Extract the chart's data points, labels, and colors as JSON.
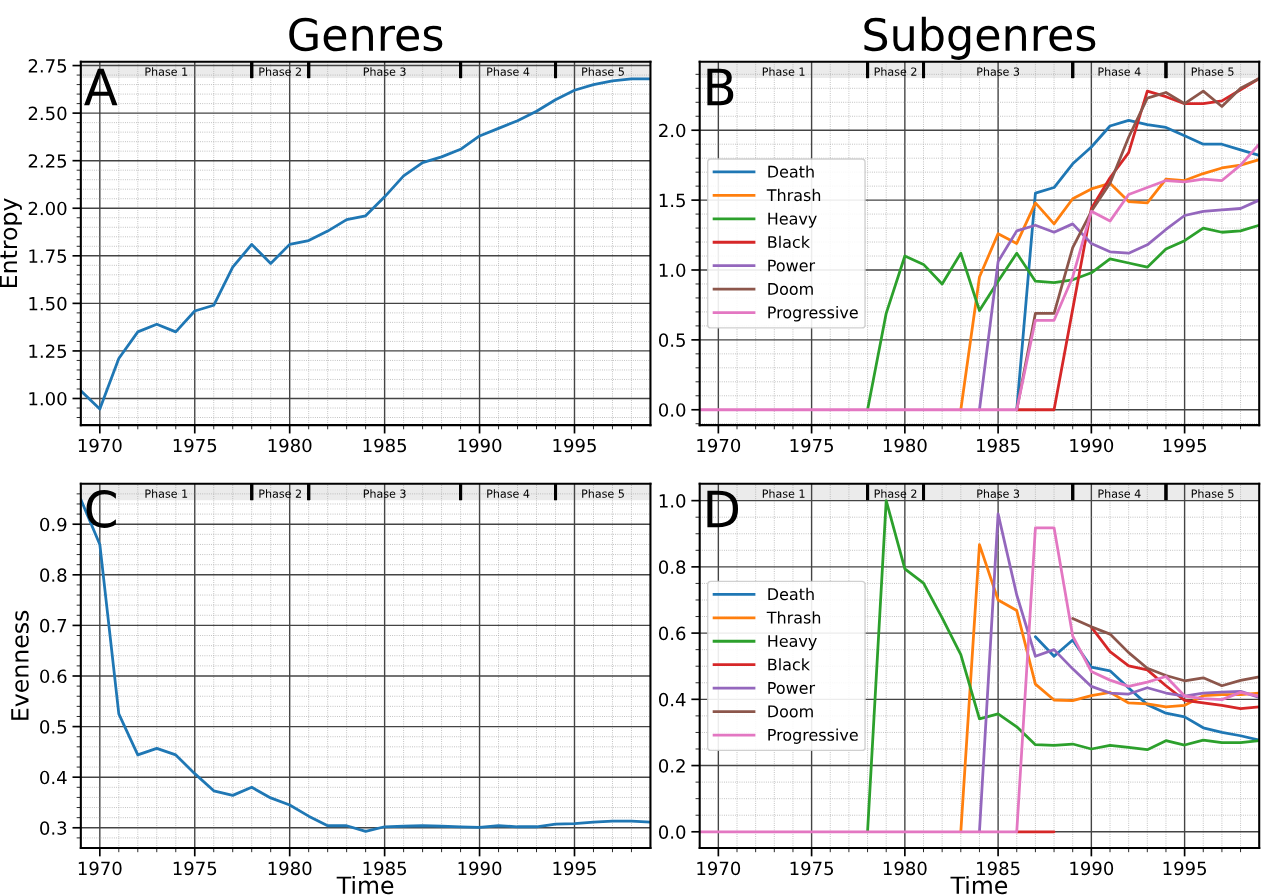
{
  "chart_data": [
    {
      "type": "line",
      "title": "Genres",
      "ylabel": "Entropy",
      "annotations": [
        "A"
      ],
      "x": [
        1969,
        1970,
        1971,
        1972,
        1973,
        1974,
        1975,
        1976,
        1977,
        1978,
        1979,
        1980,
        1981,
        1982,
        1983,
        1984,
        1985,
        1986,
        1987,
        1988,
        1989,
        1990,
        1991,
        1992,
        1993,
        1994,
        1995,
        1996,
        1997,
        1998,
        1999
      ],
      "series": [
        {
          "color": "#1f77b4",
          "values": [
            1.04,
            0.945,
            1.21,
            1.35,
            1.39,
            1.35,
            1.46,
            1.49,
            1.69,
            1.81,
            1.71,
            1.81,
            1.83,
            1.88,
            1.94,
            1.96,
            2.06,
            2.17,
            2.24,
            2.27,
            2.31,
            2.38,
            2.42,
            2.46,
            2.51,
            2.57,
            2.62,
            2.65,
            2.67,
            2.68,
            2.68
          ]
        }
      ],
      "xlim": [
        1969,
        1999
      ],
      "xticks": [
        1970,
        1975,
        1980,
        1985,
        1990,
        1995,
        {
          "value": 1971,
          "label": null
        },
        {
          "value": 1972,
          "label": null
        },
        {
          "value": 1973,
          "label": null
        },
        {
          "value": 1974,
          "label": null
        },
        {
          "value": 1976,
          "label": null
        },
        {
          "value": 1977,
          "label": null
        },
        {
          "value": 1978,
          "label": null
        },
        {
          "value": 1979,
          "label": null
        },
        {
          "value": 1981,
          "label": null
        },
        {
          "value": 1982,
          "label": null
        },
        {
          "value": 1983,
          "label": null
        },
        {
          "value": 1984,
          "label": null
        },
        {
          "value": 1986,
          "label": null
        },
        {
          "value": 1987,
          "label": null
        },
        {
          "value": 1988,
          "label": null
        },
        {
          "value": 1989,
          "label": null
        },
        {
          "value": 1991,
          "label": null
        },
        {
          "value": 1992,
          "label": null
        },
        {
          "value": 1993,
          "label": null
        },
        {
          "value": 1994,
          "label": null
        },
        {
          "value": 1996,
          "label": null
        },
        {
          "value": 1997,
          "label": null
        },
        {
          "value": 1998,
          "label": null
        }
      ],
      "ylim": [
        0.86,
        2.77
      ],
      "yticks": [
        {
          "value": 1.0,
          "label": "1.00"
        },
        {
          "value": 1.25,
          "label": "1.25"
        },
        {
          "value": 1.5,
          "label": "1.50"
        },
        {
          "value": 1.75,
          "label": "1.75"
        },
        {
          "value": 2.0,
          "label": "2.00"
        },
        {
          "value": 2.25,
          "label": "2.25"
        },
        {
          "value": 2.5,
          "label": "2.50"
        },
        {
          "value": 2.75,
          "label": "2.75"
        },
        {
          "value": 0.9,
          "label": null
        },
        {
          "value": 0.95,
          "label": null
        },
        {
          "value": 1.05,
          "label": null
        },
        {
          "value": 1.1,
          "label": null
        },
        {
          "value": 1.15,
          "label": null
        },
        {
          "value": 1.2,
          "label": null
        },
        {
          "value": 1.3,
          "label": null
        },
        {
          "value": 1.35,
          "label": null
        },
        {
          "value": 1.4,
          "label": null
        },
        {
          "value": 1.45,
          "label": null
        },
        {
          "value": 1.55,
          "label": null
        },
        {
          "value": 1.6,
          "label": null
        },
        {
          "value": 1.65,
          "label": null
        },
        {
          "value": 1.7,
          "label": null
        },
        {
          "value": 1.8,
          "label": null
        },
        {
          "value": 1.85,
          "label": null
        },
        {
          "value": 1.9,
          "label": null
        },
        {
          "value": 1.95,
          "label": null
        },
        {
          "value": 2.05,
          "label": null
        },
        {
          "value": 2.1,
          "label": null
        },
        {
          "value": 2.15,
          "label": null
        },
        {
          "value": 2.2,
          "label": null
        },
        {
          "value": 2.3,
          "label": null
        },
        {
          "value": 2.35,
          "label": null
        },
        {
          "value": 2.4,
          "label": null
        },
        {
          "value": 2.45,
          "label": null
        },
        {
          "value": 2.55,
          "label": null
        },
        {
          "value": 2.6,
          "label": null
        },
        {
          "value": 2.65,
          "label": null
        },
        {
          "value": 2.7,
          "label": null
        }
      ],
      "bands": [
        {
          "axis": "x",
          "from": 1969,
          "to": 1978,
          "label": "Phase 1"
        },
        {
          "axis": "x",
          "from": 1978,
          "to": 1981,
          "label": "Phase 2"
        },
        {
          "axis": "x",
          "from": 1981,
          "to": 1989,
          "label": "Phase 3"
        },
        {
          "axis": "x",
          "from": 1989,
          "to": 1994,
          "label": "Phase 4"
        },
        {
          "axis": "x",
          "from": 1994,
          "to": 1999,
          "label": "Phase 5"
        }
      ],
      "grid": true
    },
    {
      "type": "line",
      "title": "Subgenres",
      "annotations": [
        "B"
      ],
      "legend": "left",
      "x": [
        1969,
        1970,
        1971,
        1972,
        1973,
        1974,
        1975,
        1976,
        1977,
        1978,
        1979,
        1980,
        1981,
        1982,
        1983,
        1984,
        1985,
        1986,
        1987,
        1988,
        1989,
        1990,
        1991,
        1992,
        1993,
        1994,
        1995,
        1996,
        1997,
        1998,
        1999
      ],
      "series": [
        {
          "name": "Death",
          "color": "#1f77b4",
          "values": [
            null,
            null,
            null,
            null,
            null,
            null,
            null,
            null,
            null,
            null,
            null,
            null,
            null,
            null,
            null,
            null,
            null,
            0,
            1.55,
            1.59,
            1.76,
            1.88,
            2.03,
            2.07,
            2.04,
            2.02,
            1.96,
            1.9,
            1.9,
            1.86,
            1.82
          ]
        },
        {
          "name": "Thrash",
          "color": "#ff7f0e",
          "values": [
            null,
            null,
            null,
            null,
            null,
            null,
            null,
            null,
            null,
            null,
            null,
            null,
            null,
            null,
            0,
            0.95,
            1.26,
            1.19,
            1.48,
            1.33,
            1.51,
            1.58,
            1.62,
            1.49,
            1.48,
            1.65,
            1.64,
            1.69,
            1.73,
            1.75,
            1.79
          ]
        },
        {
          "name": "Heavy",
          "color": "#2ca02c",
          "values": [
            null,
            null,
            null,
            null,
            null,
            null,
            null,
            null,
            null,
            0,
            0.69,
            1.1,
            1.04,
            0.9,
            1.12,
            0.71,
            0.92,
            1.12,
            0.92,
            0.91,
            0.93,
            0.98,
            1.08,
            1.05,
            1.02,
            1.15,
            1.21,
            1.3,
            1.27,
            1.28,
            1.32
          ]
        },
        {
          "name": "Black",
          "color": "#d62728",
          "values": [
            null,
            null,
            null,
            null,
            null,
            null,
            null,
            null,
            null,
            null,
            null,
            null,
            null,
            null,
            null,
            null,
            null,
            0,
            0,
            0,
            0.72,
            1.44,
            1.66,
            1.84,
            2.28,
            2.24,
            2.19,
            2.19,
            2.21,
            2.29,
            2.37
          ]
        },
        {
          "name": "Power",
          "color": "#9467bd",
          "values": [
            null,
            null,
            null,
            null,
            null,
            null,
            null,
            null,
            null,
            null,
            null,
            null,
            null,
            null,
            null,
            0,
            1.06,
            1.28,
            1.32,
            1.27,
            1.33,
            1.19,
            1.13,
            1.12,
            1.18,
            1.29,
            1.39,
            1.42,
            1.43,
            1.44,
            1.5
          ]
        },
        {
          "name": "Doom",
          "color": "#8c564b",
          "values": [
            null,
            null,
            null,
            null,
            null,
            null,
            null,
            null,
            null,
            null,
            null,
            null,
            null,
            null,
            null,
            null,
            null,
            0,
            0.69,
            0.69,
            1.16,
            1.42,
            1.62,
            1.95,
            2.23,
            2.27,
            2.19,
            2.28,
            2.17,
            2.3,
            2.37
          ]
        },
        {
          "name": "Progressive",
          "color": "#e377c2",
          "values": [
            0,
            0,
            0,
            0,
            0,
            0,
            0,
            0,
            0,
            0,
            0,
            0,
            0,
            0,
            0,
            0,
            0,
            0,
            0.64,
            0.64,
            0.95,
            1.42,
            1.35,
            1.54,
            1.59,
            1.64,
            1.63,
            1.65,
            1.64,
            1.75,
            1.9
          ]
        }
      ],
      "xlim": [
        1969,
        1999
      ],
      "xticks": [
        1970,
        1975,
        1980,
        1985,
        1990,
        1995,
        {
          "value": 1971,
          "label": null
        },
        {
          "value": 1972,
          "label": null
        },
        {
          "value": 1973,
          "label": null
        },
        {
          "value": 1974,
          "label": null
        },
        {
          "value": 1976,
          "label": null
        },
        {
          "value": 1977,
          "label": null
        },
        {
          "value": 1978,
          "label": null
        },
        {
          "value": 1979,
          "label": null
        },
        {
          "value": 1981,
          "label": null
        },
        {
          "value": 1982,
          "label": null
        },
        {
          "value": 1983,
          "label": null
        },
        {
          "value": 1984,
          "label": null
        },
        {
          "value": 1986,
          "label": null
        },
        {
          "value": 1987,
          "label": null
        },
        {
          "value": 1988,
          "label": null
        },
        {
          "value": 1989,
          "label": null
        },
        {
          "value": 1991,
          "label": null
        },
        {
          "value": 1992,
          "label": null
        },
        {
          "value": 1993,
          "label": null
        },
        {
          "value": 1994,
          "label": null
        },
        {
          "value": 1996,
          "label": null
        },
        {
          "value": 1997,
          "label": null
        },
        {
          "value": 1998,
          "label": null
        }
      ],
      "ylim": [
        -0.11,
        2.49
      ],
      "yticks": [
        {
          "value": 0,
          "label": "0.0"
        },
        {
          "value": 0.5,
          "label": "0.5"
        },
        {
          "value": 1.0,
          "label": "1.0"
        },
        {
          "value": 1.5,
          "label": "1.5"
        },
        {
          "value": 2.0,
          "label": "2.0"
        },
        {
          "value": -0.1,
          "label": null
        },
        {
          "value": 0.1,
          "label": null
        },
        {
          "value": 0.2,
          "label": null
        },
        {
          "value": 0.3,
          "label": null
        },
        {
          "value": 0.4,
          "label": null
        },
        {
          "value": 0.6,
          "label": null
        },
        {
          "value": 0.7,
          "label": null
        },
        {
          "value": 0.8,
          "label": null
        },
        {
          "value": 0.9,
          "label": null
        },
        {
          "value": 1.1,
          "label": null
        },
        {
          "value": 1.2,
          "label": null
        },
        {
          "value": 1.3,
          "label": null
        },
        {
          "value": 1.4,
          "label": null
        },
        {
          "value": 1.6,
          "label": null
        },
        {
          "value": 1.7,
          "label": null
        },
        {
          "value": 1.8,
          "label": null
        },
        {
          "value": 1.9,
          "label": null
        },
        {
          "value": 2.1,
          "label": null
        },
        {
          "value": 2.2,
          "label": null
        },
        {
          "value": 2.3,
          "label": null
        },
        {
          "value": 2.4,
          "label": null
        }
      ],
      "bands": [
        {
          "axis": "x",
          "from": 1969,
          "to": 1978,
          "label": "Phase 1"
        },
        {
          "axis": "x",
          "from": 1978,
          "to": 1981,
          "label": "Phase 2"
        },
        {
          "axis": "x",
          "from": 1981,
          "to": 1989,
          "label": "Phase 3"
        },
        {
          "axis": "x",
          "from": 1989,
          "to": 1994,
          "label": "Phase 4"
        },
        {
          "axis": "x",
          "from": 1994,
          "to": 1999,
          "label": "Phase 5"
        }
      ],
      "grid": true
    },
    {
      "type": "line",
      "ylabel": "Evenness",
      "xlabel": "Time",
      "annotations": [
        "C"
      ],
      "x": [
        1969,
        1970,
        1971,
        1972,
        1973,
        1974,
        1975,
        1976,
        1977,
        1978,
        1979,
        1980,
        1981,
        1982,
        1983,
        1984,
        1985,
        1986,
        1987,
        1988,
        1989,
        1990,
        1991,
        1992,
        1993,
        1994,
        1995,
        1996,
        1997,
        1998,
        1999
      ],
      "series": [
        {
          "color": "#1f77b4",
          "values": [
            0.949,
            0.86,
            0.525,
            0.444,
            0.457,
            0.444,
            0.407,
            0.373,
            0.364,
            0.38,
            0.359,
            0.345,
            0.323,
            0.304,
            0.304,
            0.293,
            0.302,
            0.303,
            0.304,
            0.303,
            0.302,
            0.301,
            0.304,
            0.302,
            0.302,
            0.307,
            0.308,
            0.311,
            0.313,
            0.313,
            0.311
          ]
        }
      ],
      "xlim": [
        1969,
        1999
      ],
      "xticks": [
        1970,
        1975,
        1980,
        1985,
        1990,
        1995,
        {
          "value": 1971,
          "label": null
        },
        {
          "value": 1972,
          "label": null
        },
        {
          "value": 1973,
          "label": null
        },
        {
          "value": 1974,
          "label": null
        },
        {
          "value": 1976,
          "label": null
        },
        {
          "value": 1977,
          "label": null
        },
        {
          "value": 1978,
          "label": null
        },
        {
          "value": 1979,
          "label": null
        },
        {
          "value": 1981,
          "label": null
        },
        {
          "value": 1982,
          "label": null
        },
        {
          "value": 1983,
          "label": null
        },
        {
          "value": 1984,
          "label": null
        },
        {
          "value": 1986,
          "label": null
        },
        {
          "value": 1987,
          "label": null
        },
        {
          "value": 1988,
          "label": null
        },
        {
          "value": 1989,
          "label": null
        },
        {
          "value": 1991,
          "label": null
        },
        {
          "value": 1992,
          "label": null
        },
        {
          "value": 1993,
          "label": null
        },
        {
          "value": 1994,
          "label": null
        },
        {
          "value": 1996,
          "label": null
        },
        {
          "value": 1997,
          "label": null
        },
        {
          "value": 1998,
          "label": null
        }
      ],
      "ylim": [
        0.26,
        0.98
      ],
      "yticks": [
        0.3,
        0.4,
        0.5,
        0.6,
        0.7,
        0.8,
        0.9,
        {
          "value": 0.28,
          "label": null
        },
        {
          "value": 0.32,
          "label": null
        },
        {
          "value": 0.34,
          "label": null
        },
        {
          "value": 0.36,
          "label": null
        },
        {
          "value": 0.38,
          "label": null
        },
        {
          "value": 0.42,
          "label": null
        },
        {
          "value": 0.44,
          "label": null
        },
        {
          "value": 0.46,
          "label": null
        },
        {
          "value": 0.48,
          "label": null
        },
        {
          "value": 0.52,
          "label": null
        },
        {
          "value": 0.54,
          "label": null
        },
        {
          "value": 0.56,
          "label": null
        },
        {
          "value": 0.58,
          "label": null
        },
        {
          "value": 0.62,
          "label": null
        },
        {
          "value": 0.64,
          "label": null
        },
        {
          "value": 0.66,
          "label": null
        },
        {
          "value": 0.68,
          "label": null
        },
        {
          "value": 0.72,
          "label": null
        },
        {
          "value": 0.74,
          "label": null
        },
        {
          "value": 0.76,
          "label": null
        },
        {
          "value": 0.78,
          "label": null
        },
        {
          "value": 0.82,
          "label": null
        },
        {
          "value": 0.84,
          "label": null
        },
        {
          "value": 0.86,
          "label": null
        },
        {
          "value": 0.88,
          "label": null
        },
        {
          "value": 0.92,
          "label": null
        },
        {
          "value": 0.94,
          "label": null
        },
        {
          "value": 0.96,
          "label": null
        }
      ],
      "bands": [
        {
          "axis": "x",
          "from": 1969,
          "to": 1978,
          "label": "Phase 1"
        },
        {
          "axis": "x",
          "from": 1978,
          "to": 1981,
          "label": "Phase 2"
        },
        {
          "axis": "x",
          "from": 1981,
          "to": 1989,
          "label": "Phase 3"
        },
        {
          "axis": "x",
          "from": 1989,
          "to": 1994,
          "label": "Phase 4"
        },
        {
          "axis": "x",
          "from": 1994,
          "to": 1999,
          "label": "Phase 5"
        }
      ],
      "grid": true
    },
    {
      "type": "line",
      "xlabel": "Time",
      "annotations": [
        "D"
      ],
      "legend": "left",
      "x": [
        1969,
        1970,
        1971,
        1972,
        1973,
        1974,
        1975,
        1976,
        1977,
        1978,
        1979,
        1980,
        1981,
        1982,
        1983,
        1984,
        1985,
        1986,
        1987,
        1988,
        1989,
        1990,
        1991,
        1992,
        1993,
        1994,
        1995,
        1996,
        1997,
        1998,
        1999
      ],
      "series": [
        {
          "name": "Death",
          "color": "#1f77b4",
          "values": [
            null,
            null,
            null,
            null,
            null,
            null,
            null,
            null,
            null,
            null,
            null,
            null,
            null,
            null,
            null,
            null,
            null,
            null,
            0.589,
            0.53,
            0.579,
            0.497,
            0.486,
            0.434,
            0.384,
            0.358,
            0.347,
            0.314,
            0.3,
            0.29,
            0.277
          ]
        },
        {
          "name": "Thrash",
          "color": "#ff7f0e",
          "values": [
            null,
            null,
            null,
            null,
            null,
            null,
            null,
            null,
            null,
            null,
            null,
            null,
            null,
            null,
            0,
            0.867,
            0.7,
            0.668,
            0.446,
            0.398,
            0.396,
            0.411,
            0.421,
            0.389,
            0.386,
            0.377,
            0.382,
            0.411,
            0.414,
            0.414,
            0.419
          ]
        },
        {
          "name": "Heavy",
          "color": "#2ca02c",
          "values": [
            null,
            null,
            null,
            null,
            null,
            null,
            null,
            null,
            null,
            0,
            1.0,
            0.794,
            0.751,
            0.646,
            0.535,
            0.341,
            0.356,
            0.317,
            0.263,
            0.261,
            0.265,
            0.25,
            0.261,
            0.255,
            0.248,
            0.275,
            0.262,
            0.277,
            0.269,
            0.269,
            0.275
          ]
        },
        {
          "name": "Black",
          "color": "#d62728",
          "values": [
            null,
            null,
            null,
            null,
            null,
            null,
            null,
            null,
            null,
            null,
            null,
            null,
            null,
            null,
            null,
            null,
            null,
            0,
            0,
            0,
            null,
            0.618,
            0.544,
            0.501,
            0.489,
            0.441,
            0.397,
            0.389,
            0.382,
            0.372,
            0.377
          ]
        },
        {
          "name": "Power",
          "color": "#9467bd",
          "values": [
            null,
            null,
            null,
            null,
            null,
            null,
            null,
            null,
            null,
            null,
            null,
            null,
            null,
            null,
            null,
            0,
            0.96,
            0.715,
            0.53,
            0.55,
            0.492,
            0.439,
            0.419,
            0.416,
            0.435,
            0.419,
            0.41,
            0.419,
            0.422,
            0.424,
            0.406
          ]
        },
        {
          "name": "Doom",
          "color": "#8c564b",
          "values": [
            null,
            null,
            null,
            null,
            null,
            null,
            null,
            null,
            null,
            null,
            null,
            null,
            null,
            null,
            null,
            null,
            null,
            null,
            null,
            null,
            0.644,
            0.619,
            0.597,
            0.541,
            0.494,
            0.472,
            0.456,
            0.465,
            0.441,
            0.457,
            0.468
          ]
        },
        {
          "name": "Progressive",
          "color": "#e377c2",
          "values": [
            0,
            0,
            0,
            0,
            0,
            0,
            0,
            0,
            0,
            0,
            0,
            0,
            0,
            0,
            0,
            0,
            0,
            0,
            0.918,
            0.918,
            0.591,
            0.484,
            0.458,
            0.439,
            0.452,
            0.469,
            0.41,
            0.402,
            0.399,
            0.421,
            0.41
          ]
        }
      ],
      "xlim": [
        1969,
        1999
      ],
      "xticks": [
        1970,
        1975,
        1980,
        1985,
        1990,
        1995,
        {
          "value": 1971,
          "label": null
        },
        {
          "value": 1972,
          "label": null
        },
        {
          "value": 1973,
          "label": null
        },
        {
          "value": 1974,
          "label": null
        },
        {
          "value": 1976,
          "label": null
        },
        {
          "value": 1977,
          "label": null
        },
        {
          "value": 1978,
          "label": null
        },
        {
          "value": 1979,
          "label": null
        },
        {
          "value": 1981,
          "label": null
        },
        {
          "value": 1982,
          "label": null
        },
        {
          "value": 1983,
          "label": null
        },
        {
          "value": 1984,
          "label": null
        },
        {
          "value": 1986,
          "label": null
        },
        {
          "value": 1987,
          "label": null
        },
        {
          "value": 1988,
          "label": null
        },
        {
          "value": 1989,
          "label": null
        },
        {
          "value": 1991,
          "label": null
        },
        {
          "value": 1992,
          "label": null
        },
        {
          "value": 1993,
          "label": null
        },
        {
          "value": 1994,
          "label": null
        },
        {
          "value": 1996,
          "label": null
        },
        {
          "value": 1997,
          "label": null
        },
        {
          "value": 1998,
          "label": null
        }
      ],
      "ylim": [
        -0.049,
        1.051
      ],
      "yticks": [
        {
          "value": 0,
          "label": "0.0"
        },
        {
          "value": 0.2,
          "label": "0.2"
        },
        {
          "value": 0.4,
          "label": "0.4"
        },
        {
          "value": 0.6,
          "label": "0.6"
        },
        {
          "value": 0.8,
          "label": "0.8"
        },
        {
          "value": 1.0,
          "label": "1.0"
        },
        {
          "value": 0.05,
          "label": null
        },
        {
          "value": 0.1,
          "label": null
        },
        {
          "value": 0.15,
          "label": null
        },
        {
          "value": 0.25,
          "label": null
        },
        {
          "value": 0.3,
          "label": null
        },
        {
          "value": 0.35,
          "label": null
        },
        {
          "value": 0.45,
          "label": null
        },
        {
          "value": 0.5,
          "label": null
        },
        {
          "value": 0.55,
          "label": null
        },
        {
          "value": 0.65,
          "label": null
        },
        {
          "value": 0.7,
          "label": null
        },
        {
          "value": 0.75,
          "label": null
        },
        {
          "value": 0.85,
          "label": null
        },
        {
          "value": 0.9,
          "label": null
        },
        {
          "value": 0.95,
          "label": null
        }
      ],
      "bands": [
        {
          "axis": "x",
          "from": 1969,
          "to": 1978,
          "label": "Phase 1"
        },
        {
          "axis": "x",
          "from": 1978,
          "to": 1981,
          "label": "Phase 2"
        },
        {
          "axis": "x",
          "from": 1981,
          "to": 1989,
          "label": "Phase 3"
        },
        {
          "axis": "x",
          "from": 1989,
          "to": 1994,
          "label": "Phase 4"
        },
        {
          "axis": "x",
          "from": 1994,
          "to": 1999,
          "label": "Phase 5"
        }
      ],
      "grid": true
    }
  ]
}
